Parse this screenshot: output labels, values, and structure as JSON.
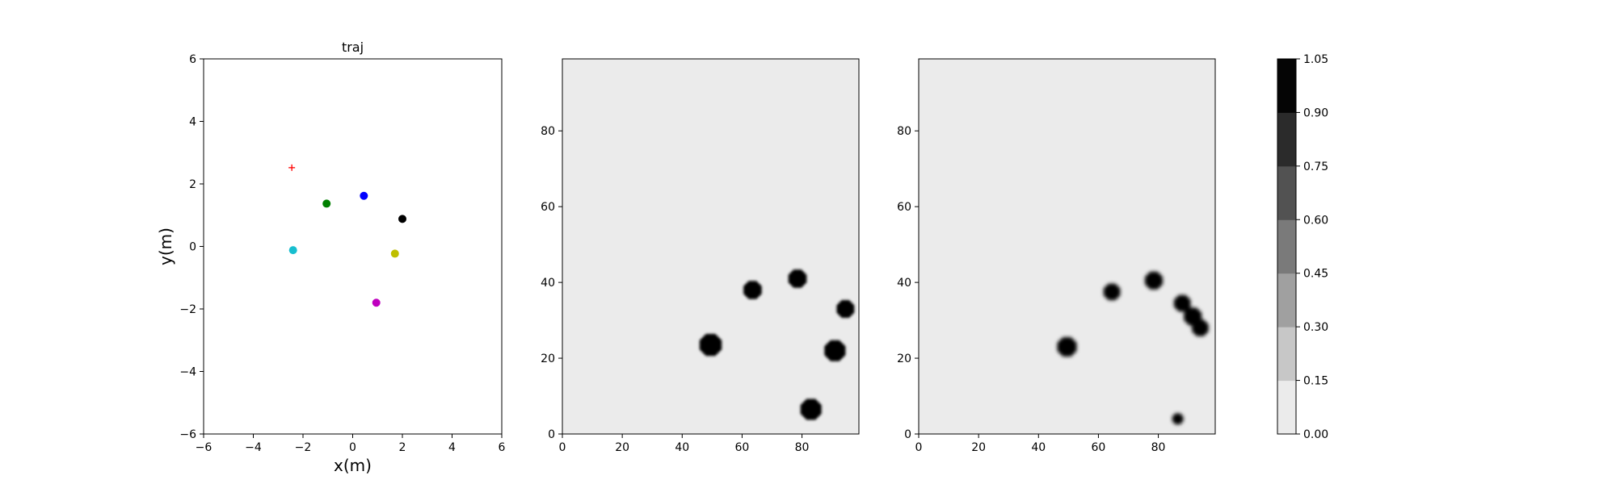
{
  "chart_data": [
    {
      "type": "scatter",
      "title": "traj",
      "xlabel": "x(m)",
      "ylabel": "y(m)",
      "xlim": [
        -6,
        6
      ],
      "ylim": [
        -6,
        6
      ],
      "xticks": [
        "−6",
        "−4",
        "−2",
        "0",
        "2",
        "4",
        "6"
      ],
      "yticks": [
        "−6",
        "−4",
        "−2",
        "0",
        "2",
        "4",
        "6"
      ],
      "grid": false,
      "points": [
        {
          "x": -2.45,
          "y": 2.52,
          "color": "#ff0000",
          "marker": "plus"
        },
        {
          "x": -1.05,
          "y": 1.37,
          "color": "#008000",
          "marker": "dot"
        },
        {
          "x": 0.45,
          "y": 1.62,
          "color": "#0000ff",
          "marker": "dot"
        },
        {
          "x": 2.0,
          "y": 0.88,
          "color": "#000000",
          "marker": "dot"
        },
        {
          "x": -2.4,
          "y": -0.12,
          "color": "#17becf",
          "marker": "dot"
        },
        {
          "x": 1.7,
          "y": -0.23,
          "color": "#bfbf00",
          "marker": "dot"
        },
        {
          "x": 0.95,
          "y": -1.8,
          "color": "#bf00bf",
          "marker": "dot"
        }
      ]
    },
    {
      "type": "heatmap",
      "xlim": [
        0,
        99
      ],
      "ylim": [
        0,
        99
      ],
      "xticks": [
        "0",
        "20",
        "40",
        "60",
        "80"
      ],
      "yticks": [
        "0",
        "20",
        "40",
        "60",
        "80"
      ],
      "background_level": 0.0,
      "blobs": [
        {
          "x": 49.5,
          "y": 23.5,
          "radius": 4,
          "level": 1.0
        },
        {
          "x": 63.5,
          "y": 38.0,
          "radius": 3.3,
          "level": 1.0
        },
        {
          "x": 78.5,
          "y": 41.0,
          "radius": 3.3,
          "level": 1.0
        },
        {
          "x": 94.5,
          "y": 33.0,
          "radius": 3.2,
          "level": 1.0
        },
        {
          "x": 91.0,
          "y": 22.0,
          "radius": 3.8,
          "level": 1.0
        },
        {
          "x": 83.0,
          "y": 6.5,
          "radius": 3.8,
          "level": 1.0
        }
      ]
    },
    {
      "type": "heatmap",
      "xlim": [
        0,
        99
      ],
      "ylim": [
        0,
        99
      ],
      "xticks": [
        "0",
        "20",
        "40",
        "60",
        "80"
      ],
      "yticks": [
        "0",
        "20",
        "40",
        "60",
        "80"
      ],
      "background_level": 0.0,
      "blobs": [
        {
          "x": 49.5,
          "y": 23.0,
          "radius": 3.5,
          "level": 1.0
        },
        {
          "x": 64.5,
          "y": 37.5,
          "radius": 3.0,
          "level": 1.0
        },
        {
          "x": 78.5,
          "y": 40.5,
          "radius": 3.2,
          "level": 1.0
        },
        {
          "x": 88.0,
          "y": 34.5,
          "radius": 3.0,
          "level": 1.0
        },
        {
          "x": 91.5,
          "y": 31.0,
          "radius": 3.2,
          "level": 1.0
        },
        {
          "x": 94.0,
          "y": 28.0,
          "radius": 3.0,
          "level": 1.0
        },
        {
          "x": 86.5,
          "y": 4.0,
          "radius": 2.0,
          "level": 1.0
        }
      ]
    }
  ],
  "colorbar": {
    "levels": [
      "0.00",
      "0.15",
      "0.30",
      "0.45",
      "0.60",
      "0.75",
      "0.90",
      "1.05"
    ],
    "colors": [
      "#ebebeb",
      "#c7c7c7",
      "#a0a0a0",
      "#7a7a7a",
      "#525252",
      "#2b2b2b",
      "#050505"
    ]
  }
}
